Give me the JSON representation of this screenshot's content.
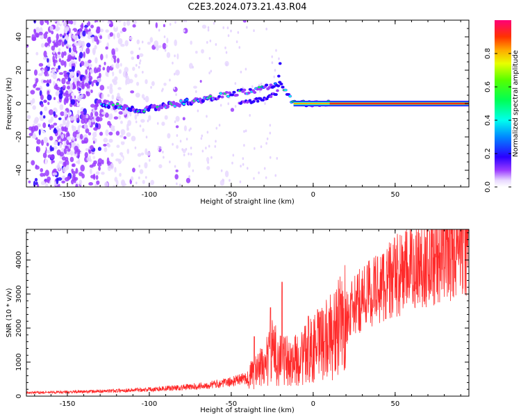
{
  "title": "C2E3.2024.073.21.43.R04",
  "chart_data": [
    {
      "type": "heatmap",
      "name": "spectrogram",
      "xlabel": "Height of straight line (km)",
      "ylabel": "Frequency (Hz)",
      "xlim": [
        -175,
        95
      ],
      "ylim": [
        -50,
        50
      ],
      "xticks": [
        -150,
        -100,
        -50,
        0,
        50
      ],
      "yticks": [
        -40,
        -20,
        0,
        20,
        40
      ],
      "colorbar": {
        "label": "Normalized spectral amplitude",
        "range": [
          0,
          1
        ],
        "ticks": [
          0.0,
          0.2,
          0.4,
          0.6,
          0.8
        ]
      },
      "features": {
        "noise_region_x": [
          -175,
          -60
        ],
        "main_trace_points": [
          [
            -130,
            0
          ],
          [
            -105,
            -4
          ],
          [
            -90,
            -1
          ],
          [
            -70,
            2
          ],
          [
            -50,
            6
          ],
          [
            -35,
            8
          ],
          [
            -20,
            12
          ],
          [
            -12,
            0
          ],
          [
            0,
            0
          ],
          [
            20,
            0
          ],
          [
            95,
            0
          ]
        ],
        "secondary_trace_points": [
          [
            -45,
            0
          ],
          [
            -30,
            3
          ],
          [
            -22,
            6
          ],
          [
            -20,
            25
          ]
        ],
        "continuous_signal_x": [
          10,
          95
        ]
      }
    },
    {
      "type": "line",
      "name": "snr",
      "xlabel": "Height of straight line (km)",
      "ylabel": "SNR (10 * v/v)",
      "xlim": [
        -175,
        95
      ],
      "ylim": [
        0,
        4900
      ],
      "xticks": [
        -150,
        -100,
        -50,
        0,
        50
      ],
      "yticks": [
        0,
        1000,
        2000,
        3000,
        4000
      ],
      "color": "#ff2a2a",
      "envelope_points": [
        [
          -175,
          100
        ],
        [
          -150,
          120
        ],
        [
          -125,
          150
        ],
        [
          -100,
          200
        ],
        [
          -75,
          270
        ],
        [
          -60,
          350
        ],
        [
          -50,
          420
        ],
        [
          -40,
          550
        ],
        [
          -35,
          700
        ],
        [
          -30,
          900
        ],
        [
          -25,
          1300
        ],
        [
          -20,
          1100
        ],
        [
          -15,
          1000
        ],
        [
          -10,
          1050
        ],
        [
          -5,
          1200
        ],
        [
          0,
          1400
        ],
        [
          5,
          1550
        ],
        [
          10,
          1750
        ],
        [
          15,
          1950
        ],
        [
          20,
          2300
        ],
        [
          25,
          2600
        ],
        [
          30,
          2900
        ],
        [
          40,
          3200
        ],
        [
          50,
          3500
        ],
        [
          60,
          3750
        ],
        [
          70,
          4000
        ],
        [
          80,
          4200
        ],
        [
          90,
          4400
        ],
        [
          95,
          4550
        ]
      ],
      "spikes": [
        [
          -36,
          1750
        ],
        [
          -26,
          2600
        ],
        [
          -19,
          3350
        ],
        [
          -3,
          2350
        ],
        [
          7,
          1600
        ],
        [
          17,
          3000
        ],
        [
          95,
          4850
        ]
      ]
    }
  ]
}
